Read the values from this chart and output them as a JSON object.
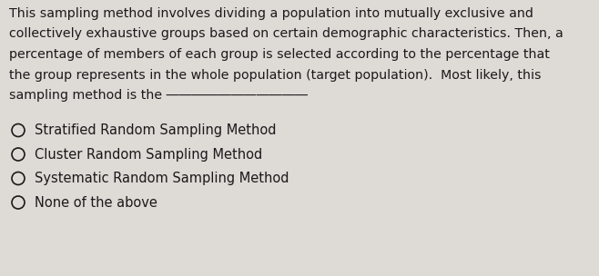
{
  "background_color": "#dedad6",
  "text_color": "#1a1a1a",
  "paragraph_lines": [
    "This sampling method involves dividing a population into mutually exclusive and",
    "collectively exhaustive groups based on certain demographic characteristics. Then, a",
    "percentage of members of each group is selected according to the percentage that",
    "the group represents in the whole population (target population).  Most likely, this",
    "sampling method is the ―――――――――――"
  ],
  "options": [
    "Stratified Random Sampling Method",
    "Cluster Random Sampling Method",
    "Systematic Random Sampling Method",
    "None of the above"
  ],
  "font_size_paragraph": 10.2,
  "font_size_options": 10.5,
  "fig_width": 6.58,
  "fig_height": 3.04,
  "dpi": 100
}
